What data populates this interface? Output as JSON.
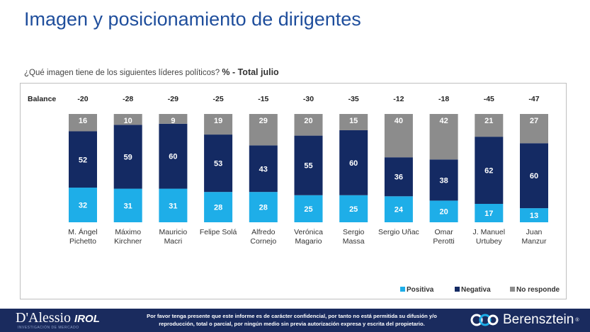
{
  "page": {
    "title": "Imagen y posicionamiento de dirigentes",
    "question": "¿Qué imagen tiene de los siguientes líderes políticos?",
    "question_suffix": "% - Total julio"
  },
  "chart_data": {
    "type": "bar",
    "stacked": true,
    "ylim": [
      0,
      100
    ],
    "balance_label": "Balance",
    "balance": [
      -20,
      -28,
      -29,
      -25,
      -15,
      -30,
      -35,
      -12,
      -18,
      -45,
      -47
    ],
    "categories": [
      [
        "M. Ángel",
        "Pichetto"
      ],
      [
        "Máximo",
        "Kirchner"
      ],
      [
        "Mauricio",
        "Macri"
      ],
      [
        "Felipe Solá"
      ],
      [
        "Alfredo",
        "Cornejo"
      ],
      [
        "Verónica",
        "Magario"
      ],
      [
        "Sergio",
        "Massa"
      ],
      [
        "Sergio Uñac"
      ],
      [
        "Omar",
        "Perotti"
      ],
      [
        "J. Manuel",
        "Urtubey"
      ],
      [
        "Juan",
        "Manzur"
      ]
    ],
    "series": [
      {
        "name": "Positiva",
        "color": "#1eaee8",
        "values": [
          32,
          31,
          31,
          28,
          28,
          25,
          25,
          24,
          20,
          17,
          13
        ]
      },
      {
        "name": "Negativa",
        "color": "#142a63",
        "values": [
          52,
          59,
          60,
          53,
          43,
          55,
          60,
          36,
          38,
          62,
          60
        ]
      },
      {
        "name": "No responde",
        "color": "#8c8c8c",
        "values": [
          16,
          10,
          9,
          19,
          29,
          20,
          15,
          40,
          42,
          21,
          27
        ]
      }
    ],
    "legend_position": "bottom-right"
  },
  "footer": {
    "brand_left": "D'Alessio",
    "brand_left_suffix": "IROL",
    "brand_left_tagline": "INVESTIGACIÓN DE MERCADO",
    "disclaimer_line1": "Por favor tenga presente que este informe es de carácter confidencial, por tanto no está permitida su difusión y/o",
    "disclaimer_line2": "reproducción, total o parcial, por ningún medio sin previa autorización expresa y escrita del propietario.",
    "brand_right": "Berensztein",
    "brand_right_mark": "®"
  }
}
